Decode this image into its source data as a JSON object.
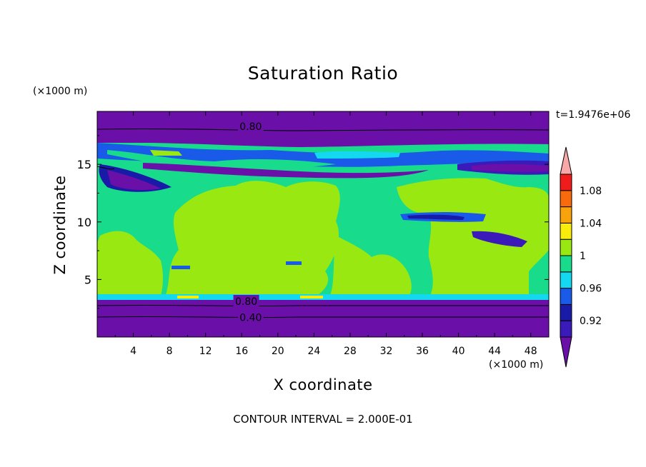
{
  "chart_data": {
    "type": "heatmap",
    "title": "Saturation Ratio",
    "xlabel": "X coordinate",
    "ylabel": "Z coordinate",
    "x_unit": "(×1000 m)",
    "y_unit": "(×1000 m)",
    "xlim": [
      0,
      50
    ],
    "ylim": [
      0,
      19.6
    ],
    "x_ticks": [
      4,
      8,
      12,
      16,
      20,
      24,
      28,
      32,
      36,
      40,
      44,
      48
    ],
    "y_ticks": [
      5,
      10,
      15
    ],
    "time_label": "t=1.9476e+06",
    "footer": "CONTOUR INTERVAL = 2.000E-01",
    "contour_labels": [
      {
        "text": "0.80",
        "x": 17,
        "z": 18.3
      },
      {
        "text": "0.80",
        "x": 16.5,
        "z": 3.1
      },
      {
        "text": "0.40",
        "x": 17,
        "z": 1.7
      }
    ],
    "colorbar": {
      "levels": [
        0.92,
        0.94,
        0.96,
        0.98,
        1.0,
        1.02,
        1.04,
        1.06,
        1.08,
        1.1
      ],
      "tick_labels": [
        "0.92",
        "0.96",
        "1",
        "1.04",
        "1.08"
      ],
      "colors": [
        "#6a0fa8",
        "#3a1ab8",
        "#1a1aa8",
        "#1a5ae8",
        "#14d8f0",
        "#18dc8c",
        "#9ae812",
        "#f8ec0c",
        "#f8a20c",
        "#f86a0c",
        "#f01c1c",
        "#f8a8a8"
      ]
    },
    "fields": {
      "band_top": {
        "value": "0.80",
        "color": "#6a0fa8"
      },
      "mid": {
        "value": "1.0",
        "color": "#18dc8c"
      },
      "band_bottom": {
        "value": "0.40-0.80",
        "color": "#6a0fa8"
      }
    }
  }
}
